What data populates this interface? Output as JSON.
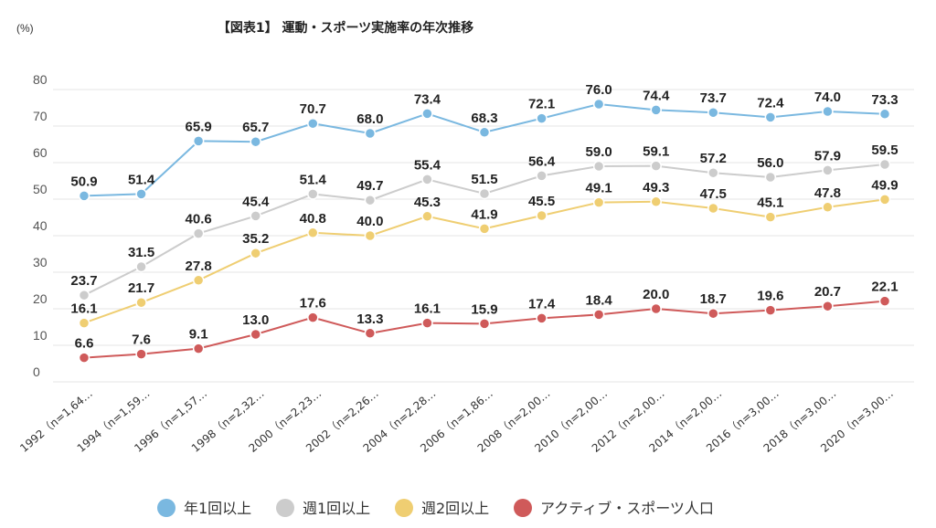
{
  "chart_data": {
    "type": "line",
    "title": "【図表1】 運動・スポーツ実施率の年次推移",
    "ylabel": "(%)",
    "xlabel": "",
    "ylim": [
      0,
      80
    ],
    "yticks": [
      0,
      10,
      20,
      30,
      40,
      50,
      60,
      70,
      80
    ],
    "grid": true,
    "legend_position": "bottom",
    "categories": [
      "1992（n=1,64…",
      "1994（n=1,59…",
      "1996（n=1,57…",
      "1998（n=2,32…",
      "2000（n=2,23…",
      "2002（n=2,26…",
      "2004（n=2,28…",
      "2006（n=1,86…",
      "2008（n=2,00…",
      "2010（n=2,00…",
      "2012（n=2,00…",
      "2014（n=2,00…",
      "2016（n=3,00…",
      "2018（n=3,00…",
      "2020（n=3,00…"
    ],
    "series": [
      {
        "name": "年1回以上",
        "color": "#7ab8e0",
        "values": [
          50.9,
          51.4,
          65.9,
          65.7,
          70.7,
          68.0,
          73.4,
          68.3,
          72.1,
          76.0,
          74.4,
          73.7,
          72.4,
          74.0,
          73.3
        ],
        "labels": [
          "50.9",
          "51.4",
          "65.9",
          "65.7",
          "70.7",
          "68.0",
          "73.4",
          "68.3",
          "72.1",
          "76.0",
          "74.4",
          "73.7",
          "72.4",
          "74.0",
          "73.3"
        ]
      },
      {
        "name": "週1回以上",
        "color": "#cccccc",
        "values": [
          23.7,
          31.5,
          40.6,
          45.4,
          51.4,
          49.7,
          55.4,
          51.5,
          56.4,
          59.0,
          59.1,
          57.2,
          56.0,
          57.9,
          59.5
        ],
        "labels": [
          "23.7",
          "31.5",
          "40.6",
          "45.4",
          "51.4",
          "49.7",
          "55.4",
          "51.5",
          "56.4",
          "59.0",
          "59.1",
          "57.2",
          "56.0",
          "57.9",
          "59.5"
        ]
      },
      {
        "name": "週2回以上",
        "color": "#efce72",
        "values": [
          16.1,
          21.7,
          27.8,
          35.2,
          40.8,
          40.0,
          45.3,
          41.9,
          45.5,
          49.1,
          49.3,
          47.5,
          45.1,
          47.8,
          49.9
        ],
        "labels": [
          "16.1",
          "21.7",
          "27.8",
          "35.2",
          "40.8",
          "40.0",
          "45.3",
          "41.9",
          "45.5",
          "49.1",
          "49.3",
          "47.5",
          "45.1",
          "47.8",
          "49.9"
        ]
      },
      {
        "name": "アクティブ・スポーツ人口",
        "color": "#cf5a5a",
        "values": [
          6.6,
          7.6,
          9.1,
          13.0,
          17.6,
          13.3,
          16.1,
          15.9,
          17.4,
          18.4,
          20.0,
          18.7,
          19.6,
          20.7,
          22.1
        ],
        "labels": [
          "6.6",
          "7.6",
          "9.1",
          "13.0",
          "17.6",
          "13.3",
          "16.1",
          "15.9",
          "17.4",
          "18.4",
          "20.0",
          "18.7",
          "19.6",
          "20.7",
          "22.1"
        ]
      }
    ]
  }
}
